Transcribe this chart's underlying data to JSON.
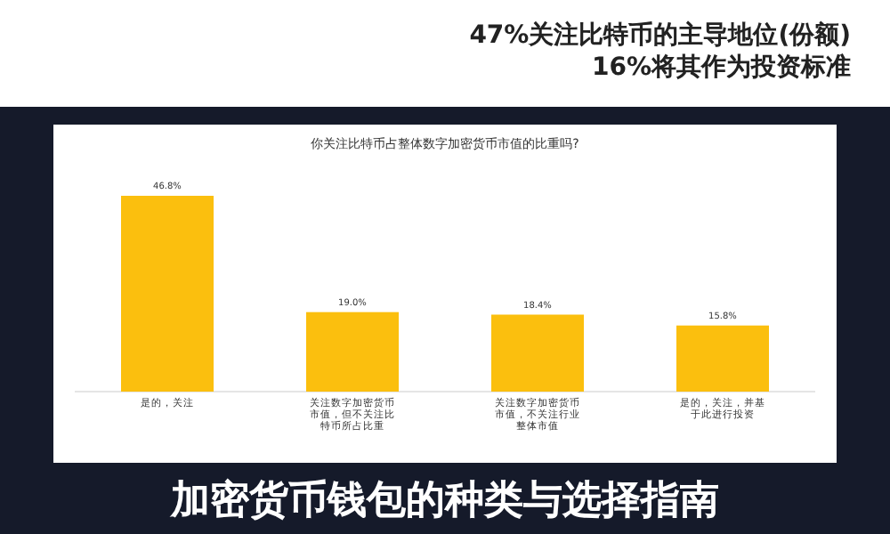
{
  "chart_data": {
    "type": "bar",
    "title": "你关注比特币占整体数字加密货币市值的比重吗?",
    "subtitle": "47%关注比特币的主导地位(份额)\n16%将其作为投资标准",
    "annotations": [
      "加密货币钱包的种类与选择指南"
    ],
    "categories": [
      "是的，关注",
      "关注数字加密货币市值，但不关注比特币所占比重",
      "关注数字加密货币市值，不关注行业整体市值",
      "是的，关注，并基于此进行投资"
    ],
    "values": [
      46.8,
      19.0,
      18.4,
      15.8
    ],
    "value_labels": [
      "46.8%",
      "19.0%",
      "18.4%",
      "15.8%"
    ],
    "color": "#fbbf0e"
  }
}
